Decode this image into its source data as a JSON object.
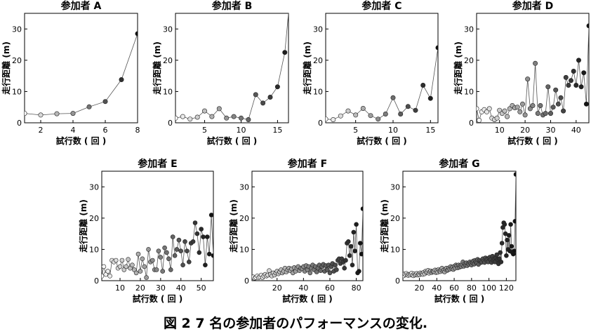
{
  "figure": {
    "caption": "図 2 7 名の参加者のパフォーマンスの変化."
  },
  "chart_data": [
    {
      "type": "line",
      "title": "参加者 A",
      "xlabel": "試行数 ( 回 )",
      "ylabel": "走行距離 (m)",
      "xlim": [
        1,
        8
      ],
      "ylim": [
        0,
        35
      ],
      "xticks": [
        2,
        4,
        6,
        8
      ],
      "yticks": [
        0,
        10,
        20,
        30
      ],
      "x": [
        1,
        2,
        3,
        4,
        5,
        6,
        7,
        8
      ],
      "y": [
        3.0,
        2.5,
        2.9,
        3.0,
        5.1,
        6.8,
        13.8,
        28.5
      ]
    },
    {
      "type": "line",
      "title": "参加者 B",
      "xlabel": "試行数 ( 回 )",
      "ylabel": "走行距離 (m)",
      "xlim": [
        1,
        16.5
      ],
      "ylim": [
        0,
        35
      ],
      "xticks": [
        5,
        10,
        15
      ],
      "yticks": [
        0,
        10,
        20,
        30
      ],
      "x": [
        1,
        2,
        3,
        4,
        5,
        6,
        7,
        8,
        9,
        10,
        11,
        12,
        13,
        14,
        15,
        16,
        16.5
      ],
      "y": [
        1.5,
        2.0,
        1.2,
        1.8,
        3.8,
        2.0,
        4.5,
        1.5,
        2.0,
        1.5,
        1.0,
        9.0,
        6.3,
        8.2,
        11.5,
        22.5,
        35
      ]
    },
    {
      "type": "line",
      "title": "参加者 C",
      "xlabel": "試行数 ( 回 )",
      "ylabel": "走行距離 (m)",
      "xlim": [
        1,
        16
      ],
      "ylim": [
        0,
        35
      ],
      "xticks": [
        5,
        10,
        15
      ],
      "yticks": [
        0,
        10,
        20,
        30
      ],
      "x": [
        1,
        2,
        3,
        4,
        5,
        6,
        7,
        8,
        9,
        10,
        11,
        12,
        13,
        14,
        15,
        16
      ],
      "y": [
        1.2,
        1.0,
        2.2,
        3.8,
        2.5,
        4.6,
        2.3,
        1.2,
        2.8,
        8.0,
        2.8,
        5.2,
        4.0,
        12.0,
        7.8,
        24.0
      ]
    },
    {
      "type": "line",
      "title": "参加者 D",
      "xlabel": "試行数 ( 回 )",
      "ylabel": "走行距離 (m)",
      "xlim": [
        1,
        45
      ],
      "ylim": [
        0,
        35
      ],
      "xticks": [
        10,
        20,
        30,
        40
      ],
      "yticks": [
        0,
        10,
        20,
        30
      ],
      "x": [
        1,
        2,
        3,
        4,
        5,
        6,
        7,
        8,
        9,
        10,
        11,
        12,
        13,
        14,
        15,
        16,
        17,
        18,
        19,
        20,
        21,
        22,
        23,
        24,
        25,
        26,
        27,
        28,
        29,
        30,
        31,
        32,
        33,
        34,
        35,
        36,
        37,
        38,
        39,
        40,
        41,
        42,
        43,
        44,
        45
      ],
      "y": [
        4.5,
        0.8,
        3.5,
        4.2,
        3.5,
        4.5,
        1.5,
        1.0,
        1.5,
        4.0,
        3.0,
        3.8,
        2.0,
        4.5,
        5.5,
        4.8,
        5.0,
        3.5,
        6.0,
        2.5,
        14.0,
        4.5,
        5.5,
        19.0,
        3.0,
        5.5,
        2.5,
        3.0,
        11.5,
        3.0,
        5.0,
        10.5,
        6.0,
        8.0,
        3.8,
        14.5,
        12.0,
        13.5,
        16.5,
        12.0,
        20.0,
        11.5,
        16.0,
        6.0,
        31.0
      ]
    },
    {
      "type": "line",
      "title": "参加者 E",
      "xlabel": "試行数 ( 回 )",
      "ylabel": "走行距離 (m)",
      "xlim": [
        1,
        56
      ],
      "ylim": [
        0,
        35
      ],
      "xticks": [
        10,
        20,
        30,
        40,
        50
      ],
      "yticks": [
        0,
        10,
        20,
        30
      ],
      "x": [
        1,
        2,
        3,
        4,
        5,
        6,
        7,
        8,
        9,
        10,
        11,
        12,
        13,
        14,
        15,
        16,
        17,
        18,
        19,
        20,
        21,
        22,
        23,
        24,
        25,
        26,
        27,
        28,
        29,
        30,
        31,
        32,
        33,
        34,
        35,
        36,
        37,
        38,
        39,
        40,
        41,
        42,
        43,
        44,
        45,
        46,
        47,
        48,
        49,
        50,
        51,
        52,
        53,
        54,
        55,
        56
      ],
      "y": [
        1.5,
        4.5,
        2.0,
        3.0,
        1.5,
        6.5,
        6.0,
        6.5,
        4.0,
        4.5,
        6.5,
        3.5,
        4.5,
        6.8,
        4.0,
        5.0,
        3.5,
        2.5,
        8.5,
        3.0,
        7.0,
        4.5,
        1.0,
        10.0,
        6.0,
        6.5,
        3.5,
        3.5,
        9.5,
        7.5,
        3.0,
        10.5,
        9.0,
        7.0,
        3.5,
        14.0,
        8.0,
        10.0,
        13.0,
        9.5,
        5.0,
        12.5,
        9.5,
        6.0,
        12.0,
        12.5,
        18.5,
        15.0,
        9.0,
        16.5,
        14.0,
        5.0,
        14.0,
        8.5,
        21.0,
        8.0
      ]
    },
    {
      "type": "line",
      "title": "参加者 F",
      "xlabel": "試行数 ( 回 )",
      "ylabel": "走行距離 (m)",
      "xlim": [
        1,
        85
      ],
      "ylim": [
        0,
        35
      ],
      "xticks": [
        20,
        40,
        60,
        80
      ],
      "yticks": [
        0,
        10,
        20,
        30
      ],
      "x": [
        1,
        2,
        3,
        4,
        5,
        6,
        7,
        8,
        9,
        10,
        11,
        12,
        13,
        14,
        15,
        16,
        17,
        18,
        19,
        20,
        21,
        22,
        23,
        24,
        25,
        26,
        27,
        28,
        29,
        30,
        31,
        32,
        33,
        34,
        35,
        36,
        37,
        38,
        39,
        40,
        41,
        42,
        43,
        44,
        45,
        46,
        47,
        48,
        49,
        50,
        51,
        52,
        53,
        54,
        55,
        56,
        57,
        58,
        59,
        60,
        61,
        62,
        63,
        64,
        65,
        66,
        67,
        68,
        69,
        70,
        71,
        72,
        73,
        74,
        75,
        76,
        77,
        78,
        79,
        80,
        81,
        82,
        83,
        84,
        85
      ],
      "y": [
        1.0,
        1.2,
        0.8,
        1.0,
        1.5,
        1.0,
        1.2,
        1.8,
        1.0,
        1.5,
        2.0,
        1.5,
        1.8,
        3.2,
        2.0,
        1.5,
        2.5,
        1.8,
        2.5,
        3.0,
        2.2,
        2.8,
        3.5,
        2.5,
        3.0,
        4.0,
        2.8,
        3.5,
        4.0,
        3.2,
        3.8,
        2.5,
        4.2,
        3.0,
        4.0,
        4.5,
        3.2,
        4.0,
        3.8,
        4.5,
        3.0,
        4.8,
        3.5,
        4.5,
        2.5,
        4.0,
        5.0,
        3.5,
        4.5,
        2.8,
        4.0,
        5.0,
        3.2,
        4.5,
        5.2,
        3.0,
        4.8,
        3.5,
        5.0,
        2.5,
        4.5,
        5.5,
        3.0,
        5.0,
        3.5,
        6.5,
        7.0,
        5.5,
        7.0,
        6.0,
        4.0,
        6.5,
        12.0,
        12.5,
        8.0,
        11.0,
        5.0,
        15.5,
        9.5,
        18.0,
        2.5,
        3.0,
        12.0,
        8.5,
        23.0
      ]
    },
    {
      "type": "line",
      "title": "参加者 G",
      "xlabel": "試行数 ( 回 )",
      "ylabel": "走行距離 (m)",
      "xlim": [
        1,
        131
      ],
      "ylim": [
        0,
        35
      ],
      "xticks": [
        20,
        40,
        60,
        80,
        100,
        120
      ],
      "yticks": [
        0,
        10,
        20,
        30
      ],
      "x": [
        1,
        2,
        3,
        4,
        5,
        6,
        7,
        8,
        9,
        10,
        11,
        12,
        13,
        14,
        15,
        16,
        17,
        18,
        19,
        20,
        21,
        22,
        23,
        24,
        25,
        26,
        27,
        28,
        29,
        30,
        31,
        32,
        33,
        34,
        35,
        36,
        37,
        38,
        39,
        40,
        41,
        42,
        43,
        44,
        45,
        46,
        47,
        48,
        49,
        50,
        51,
        52,
        53,
        54,
        55,
        56,
        57,
        58,
        59,
        60,
        61,
        62,
        63,
        64,
        65,
        66,
        67,
        68,
        69,
        70,
        71,
        72,
        73,
        74,
        75,
        76,
        77,
        78,
        79,
        80,
        81,
        82,
        83,
        84,
        85,
        86,
        87,
        88,
        89,
        90,
        91,
        92,
        93,
        94,
        95,
        96,
        97,
        98,
        99,
        100,
        101,
        102,
        103,
        104,
        105,
        106,
        107,
        108,
        109,
        110,
        111,
        112,
        113,
        114,
        115,
        116,
        117,
        118,
        119,
        120,
        121,
        122,
        123,
        124,
        125,
        126,
        127,
        128,
        129,
        130,
        131
      ],
      "y": [
        2.2,
        1.6,
        2.1,
        1.9,
        2.3,
        1.9,
        1.7,
        2.0,
        1.8,
        2.1,
        2.4,
        1.8,
        1.6,
        2.2,
        1.8,
        2.0,
        2.3,
        1.8,
        2.1,
        1.9,
        2.5,
        2.1,
        2.3,
        2.0,
        2.7,
        2.2,
        3.0,
        2.6,
        2.8,
        3.3,
        2.4,
        2.9,
        3.1,
        2.6,
        2.9,
        3.0,
        2.8,
        3.4,
        2.6,
        3.2,
        2.7,
        3.6,
        3.1,
        2.9,
        3.5,
        4.0,
        3.1,
        3.4,
        2.8,
        3.7,
        4.0,
        3.3,
        3.5,
        4.1,
        3.7,
        4.5,
        3.9,
        4.3,
        3.6,
        4.6,
        4.0,
        5.0,
        4.7,
        4.1,
        5.0,
        4.3,
        4.8,
        4.5,
        5.2,
        6.0,
        4.6,
        5.4,
        5.0,
        5.7,
        4.8,
        5.5,
        5.2,
        6.0,
        5.5,
        5.0,
        5.8,
        6.3,
        5.3,
        6.5,
        6.0,
        5.6,
        6.8,
        5.2,
        6.5,
        6.2,
        5.8,
        6.0,
        7.0,
        6.3,
        5.8,
        7.3,
        6.6,
        6.9,
        6.0,
        7.2,
        7.5,
        6.7,
        5.8,
        7.8,
        6.5,
        7.0,
        6.0,
        7.3,
        8.3,
        6.8,
        5.4,
        7.0,
        9.0,
        6.0,
        12.0,
        17.0,
        18.5,
        18.0,
        15.0,
        8.0,
        13.0,
        10.0,
        14.5,
        9.5,
        18.0,
        11.0,
        9.0,
        8.5,
        9.5,
        19.0,
        34.0
      ]
    }
  ]
}
